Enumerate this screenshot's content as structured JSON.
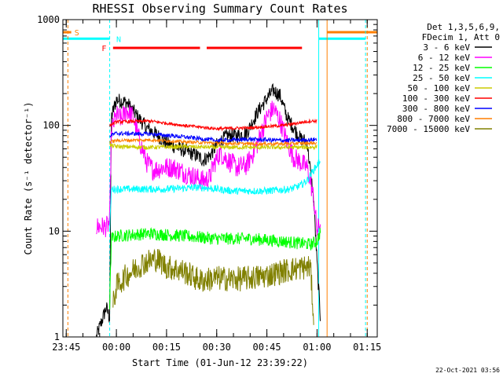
{
  "chart_data": {
    "type": "line",
    "title": "RHESSI Observing Summary Count Rates",
    "xlabel": "Start Time (01-Jun-12 23:39:22)",
    "ylabel": "Count Rate (s⁻¹ detector⁻¹)",
    "yscale": "log",
    "ylim": [
      1,
      1000
    ],
    "y_ticks": [
      {
        "value": 1,
        "label": "1"
      },
      {
        "value": 10,
        "label": "10"
      },
      {
        "value": 100,
        "label": "100"
      },
      {
        "value": 1000,
        "label": "1000"
      }
    ],
    "xlim_minutes": [
      -16,
      78
    ],
    "x_ticks": [
      {
        "value": -15,
        "label": "23:45"
      },
      {
        "value": 0,
        "label": "00:00"
      },
      {
        "value": 15,
        "label": "00:15"
      },
      {
        "value": 30,
        "label": "00:30"
      },
      {
        "value": 45,
        "label": "00:45"
      },
      {
        "value": 60,
        "label": "01:00"
      },
      {
        "value": 75,
        "label": "01:15"
      }
    ],
    "legend_header": [
      "Det 1,3,5,6,9,",
      "FDecim 1, Att 0"
    ],
    "legend_position": "top-right",
    "footer_date": "22-Oct-2021 03:56",
    "flags": [
      {
        "label": "S",
        "color": "#ff7f00",
        "y": 760,
        "segments": [
          [
            -16,
            -13.5
          ],
          [
            63,
            78
          ]
        ]
      },
      {
        "label": "N",
        "color": "#00ffff",
        "y": 660,
        "segments": [
          [
            -16,
            -2
          ],
          [
            60.5,
            74.5
          ]
        ]
      },
      {
        "label": "F",
        "color": "#ff0000",
        "y": 540,
        "segments": [
          [
            -1,
            25
          ],
          [
            27,
            55.5
          ]
        ]
      }
    ],
    "vlines": [
      {
        "x": -14.5,
        "color": "#ff7f00",
        "style": "dashed"
      },
      {
        "x": -2,
        "color": "#00ffff",
        "style": "dashed"
      },
      {
        "x": 60.5,
        "color": "#00ffff",
        "style": "solid"
      },
      {
        "x": 63,
        "color": "#ff7f00",
        "style": "solid"
      },
      {
        "x": 74.5,
        "color": "#00ffff",
        "style": "dashed"
      },
      {
        "x": 75,
        "color": "#ff7f00",
        "style": "dashed"
      }
    ],
    "series": [
      {
        "name": "3 - 6 keV",
        "color": "#000000",
        "noise": 0.07,
        "points": [
          [
            -6,
            1.0
          ],
          [
            -3,
            1.9
          ],
          [
            -2,
            1.5
          ],
          [
            -1.5,
            120
          ],
          [
            0,
            175
          ],
          [
            3,
            165
          ],
          [
            6,
            125
          ],
          [
            9,
            95
          ],
          [
            12,
            82
          ],
          [
            15,
            68
          ],
          [
            18,
            62
          ],
          [
            21,
            57
          ],
          [
            24,
            52
          ],
          [
            26,
            47
          ],
          [
            28,
            52
          ],
          [
            30,
            65
          ],
          [
            33,
            80
          ],
          [
            36,
            80
          ],
          [
            39,
            85
          ],
          [
            42,
            130
          ],
          [
            45,
            180
          ],
          [
            47,
            215
          ],
          [
            49,
            190
          ],
          [
            51,
            120
          ],
          [
            53,
            95
          ],
          [
            55,
            75
          ],
          [
            57,
            70
          ],
          [
            59,
            20
          ],
          [
            60,
            5
          ],
          [
            61,
            1.5
          ]
        ]
      },
      {
        "name": "6 - 12 keV",
        "color": "#ff00ff",
        "noise": 0.1,
        "points": [
          [
            -6,
            11
          ],
          [
            -3,
            11
          ],
          [
            -2,
            12
          ],
          [
            -1.5,
            90
          ],
          [
            0,
            125
          ],
          [
            1.5,
            115
          ],
          [
            3,
            140
          ],
          [
            5,
            120
          ],
          [
            7,
            70
          ],
          [
            9,
            45
          ],
          [
            11,
            38
          ],
          [
            14,
            40
          ],
          [
            17,
            40
          ],
          [
            20,
            36
          ],
          [
            23,
            33
          ],
          [
            26,
            30
          ],
          [
            28,
            32
          ],
          [
            29,
            42
          ],
          [
            31,
            55
          ],
          [
            33,
            48
          ],
          [
            36,
            40
          ],
          [
            39,
            42
          ],
          [
            42,
            65
          ],
          [
            45,
            120
          ],
          [
            47,
            145
          ],
          [
            49,
            110
          ],
          [
            51,
            70
          ],
          [
            53,
            50
          ],
          [
            55,
            45
          ],
          [
            57,
            40
          ],
          [
            58,
            30
          ],
          [
            59,
            20
          ],
          [
            60,
            10
          ],
          [
            61,
            12
          ]
        ]
      },
      {
        "name": "12 - 25 keV",
        "color": "#00ff00",
        "noise": 0.06,
        "points": [
          [
            -2,
            2
          ],
          [
            -1.5,
            8.5
          ],
          [
            0,
            9
          ],
          [
            10,
            9.5
          ],
          [
            20,
            9
          ],
          [
            30,
            8.5
          ],
          [
            40,
            8.5
          ],
          [
            50,
            8
          ],
          [
            58,
            7.5
          ],
          [
            60,
            8
          ],
          [
            61,
            10
          ]
        ]
      },
      {
        "name": "25 - 50 keV",
        "color": "#00ffff",
        "noise": 0.035,
        "points": [
          [
            -2,
            10
          ],
          [
            -1.5,
            25
          ],
          [
            5,
            25
          ],
          [
            15,
            25
          ],
          [
            25,
            26
          ],
          [
            35,
            24
          ],
          [
            45,
            24
          ],
          [
            52,
            25
          ],
          [
            55,
            27
          ],
          [
            57,
            30
          ],
          [
            58,
            34
          ],
          [
            59,
            38
          ],
          [
            60,
            42
          ],
          [
            61,
            48
          ]
        ]
      },
      {
        "name": "50 - 100 keV",
        "color": "#cccc00",
        "noise": 0.02,
        "points": [
          [
            -2,
            65
          ],
          [
            0,
            63
          ],
          [
            10,
            62
          ],
          [
            20,
            63
          ],
          [
            30,
            62
          ],
          [
            40,
            62
          ],
          [
            50,
            62
          ],
          [
            58,
            62
          ],
          [
            60,
            63
          ]
        ]
      },
      {
        "name": "100 - 300 keV",
        "color": "#ff0000",
        "noise": 0.015,
        "points": [
          [
            -2,
            100
          ],
          [
            0,
            108
          ],
          [
            10,
            110
          ],
          [
            20,
            100
          ],
          [
            30,
            93
          ],
          [
            40,
            95
          ],
          [
            50,
            100
          ],
          [
            58,
            110
          ],
          [
            60,
            110
          ]
        ]
      },
      {
        "name": "300 - 800 keV",
        "color": "#0000ff",
        "noise": 0.02,
        "points": [
          [
            -2,
            80
          ],
          [
            0,
            84
          ],
          [
            10,
            83
          ],
          [
            20,
            78
          ],
          [
            30,
            72
          ],
          [
            40,
            74
          ],
          [
            50,
            72
          ],
          [
            58,
            73
          ],
          [
            60,
            74
          ]
        ]
      },
      {
        "name": "800 - 7000 keV",
        "color": "#ff7f00",
        "noise": 0.015,
        "points": [
          [
            -2,
            70
          ],
          [
            0,
            72
          ],
          [
            10,
            73
          ],
          [
            20,
            70
          ],
          [
            30,
            68
          ],
          [
            40,
            67
          ],
          [
            50,
            67
          ],
          [
            58,
            68
          ],
          [
            60,
            68
          ]
        ]
      },
      {
        "name": "7000 - 15000 keV",
        "color": "#808000",
        "noise": 0.12,
        "points": [
          [
            -1,
            2
          ],
          [
            0,
            3.0
          ],
          [
            3,
            3.8
          ],
          [
            8,
            5.0
          ],
          [
            12,
            5.5
          ],
          [
            15,
            4.6
          ],
          [
            20,
            4.2
          ],
          [
            25,
            3.4
          ],
          [
            30,
            3.6
          ],
          [
            35,
            3.5
          ],
          [
            40,
            3.6
          ],
          [
            45,
            3.8
          ],
          [
            50,
            4.2
          ],
          [
            55,
            4.5
          ],
          [
            58,
            4.6
          ],
          [
            59,
            1.5
          ]
        ]
      }
    ]
  }
}
